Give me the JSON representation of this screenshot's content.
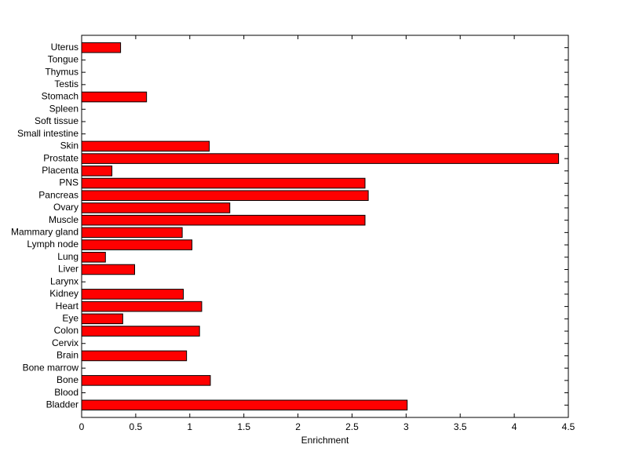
{
  "chart_data": {
    "type": "barh",
    "categories": [
      "Bladder",
      "Blood",
      "Bone",
      "Bone marrow",
      "Brain",
      "Cervix",
      "Colon",
      "Eye",
      "Heart",
      "Kidney",
      "Larynx",
      "Liver",
      "Lung",
      "Lymph node",
      "Mammary gland",
      "Muscle",
      "Ovary",
      "Pancreas",
      "PNS",
      "Placenta",
      "Prostate",
      "Skin",
      "Small intestine",
      "Soft tissue",
      "Spleen",
      "Stomach",
      "Testis",
      "Thymus",
      "Tongue",
      "Uterus"
    ],
    "values": [
      3.01,
      0,
      1.19,
      0,
      0.97,
      0,
      1.09,
      0.38,
      1.11,
      0.94,
      0,
      0.49,
      0.22,
      1.02,
      0.93,
      2.62,
      1.37,
      2.65,
      2.62,
      0.28,
      4.41,
      1.18,
      0,
      0,
      0,
      0.6,
      0,
      0,
      0,
      0.36
    ],
    "color": "#ff0000",
    "xlabel": "Enrichment",
    "xlim": [
      0,
      4.5
    ],
    "xticks": [
      0,
      0.5,
      1,
      1.5,
      2,
      2.5,
      3,
      3.5,
      4,
      4.5
    ],
    "grid": false
  }
}
